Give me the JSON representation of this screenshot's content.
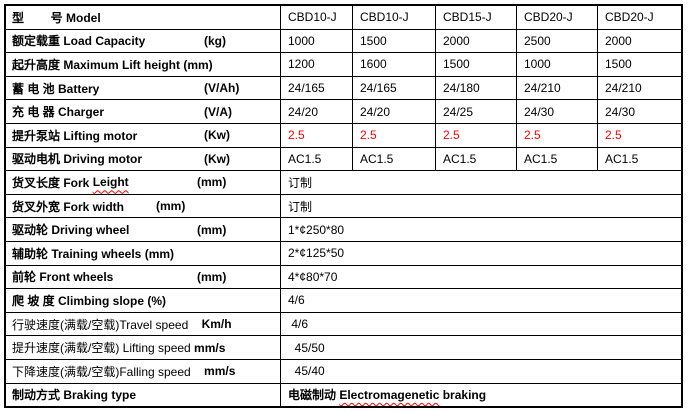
{
  "colors": {
    "border": "#000000",
    "text": "#000000",
    "highlight_value": "#FF0000",
    "spellcheck_underline": "#FF0000",
    "background": "#FFFFFF"
  },
  "table": {
    "rows": [
      {
        "label": "型        号 Model",
        "values": [
          "CBD10-J",
          "CBD10-J",
          "CBD15-J",
          "CBD20-J",
          "CBD20-J"
        ]
      },
      {
        "label": "额定载重 Load Capacity",
        "unit": "(kg)",
        "values": [
          "1000",
          "1500",
          "2000",
          "2500",
          "2000"
        ]
      },
      {
        "label": "起升高度 Maximum Lift height (mm)",
        "values": [
          "1200",
          "1600",
          "1500",
          "1000",
          "1500"
        ]
      },
      {
        "label": "蓄 电 池 Battery",
        "unit": "(V/Ah)",
        "values": [
          "24/165",
          "24/165",
          "24/180",
          "24/210",
          "24/210"
        ]
      },
      {
        "label": "充 电 器 Charger",
        "unit": "(V/A)",
        "values": [
          "24/20",
          "24/20",
          "24/25",
          "24/30",
          "24/30"
        ]
      },
      {
        "label": "提升泵站 Lifting motor",
        "unit": "(Kw)",
        "values": [
          "2.5",
          "2.5",
          "2.5",
          "2.5",
          "2.5"
        ]
      },
      {
        "label": "驱动电机 Driving motor",
        "unit": "(Kw)",
        "values": [
          "AC1.5",
          "AC1.5",
          "AC1.5",
          "AC1.5",
          "AC1.5"
        ]
      },
      {
        "label_pre": "货叉长度 Fork ",
        "label_misspelled": "Leight",
        "unit": "(mm)",
        "value": "订制"
      },
      {
        "label": "货叉外宽 Fork width",
        "unit": "(mm)",
        "value": "订制"
      },
      {
        "label": "驱动轮 Driving wheel",
        "unit": "(mm)",
        "value": "1*¢250*80"
      },
      {
        "label": "辅助轮 Training wheels (mm)",
        "value": "2*¢125*50"
      },
      {
        "label": "前轮 Front wheels",
        "unit": "(mm)",
        "value": "4*¢80*70"
      },
      {
        "label": "爬 坡 度 Climbing slope (%)",
        "value": "4/6"
      },
      {
        "label": "行驶速度(满载/空载)Travel speed    ",
        "unit": "Km/h",
        "value": " 4/6"
      },
      {
        "label": "提升速度(满载/空载) Lifting speed ",
        "unit": "mm/s",
        "value": "  45/50"
      },
      {
        "label": "下降速度(满载/空载)Falling speed    ",
        "unit": "mm/s",
        "value": "  45/40"
      },
      {
        "label": "制动方式 Braking type",
        "value_pre": "电磁制动 ",
        "value_misspelled": "Electromagenetic",
        "value_post": " braking"
      }
    ]
  }
}
